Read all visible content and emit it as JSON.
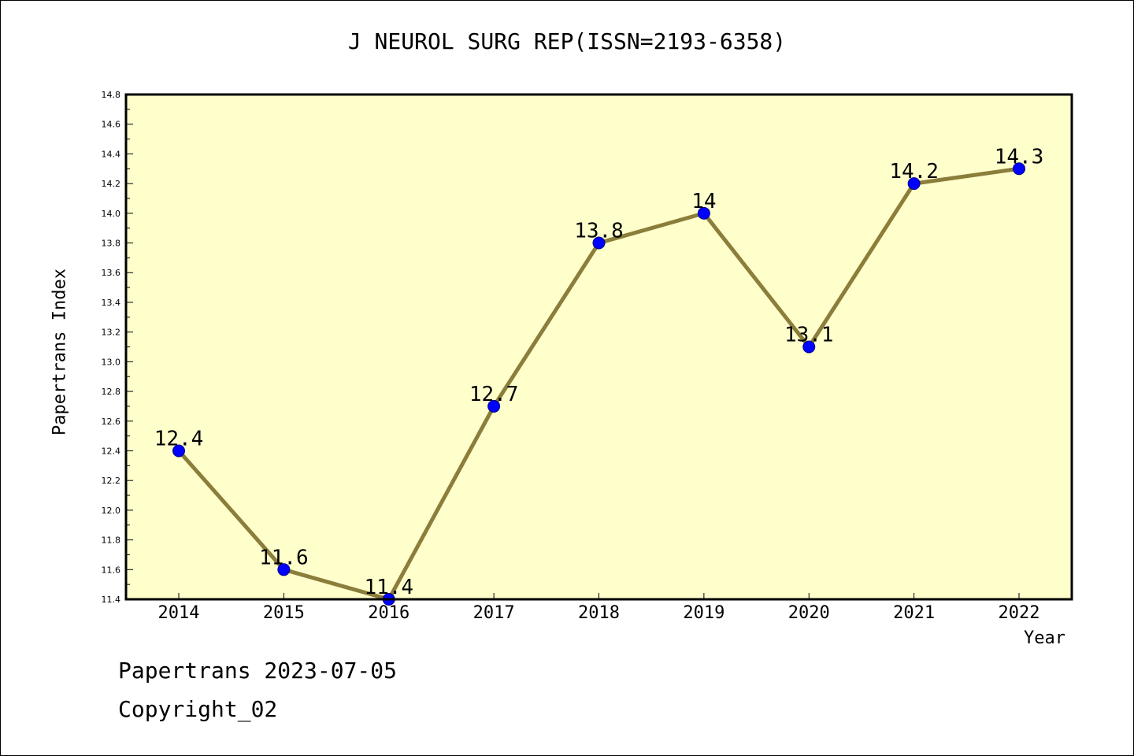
{
  "chart_data": {
    "type": "line",
    "title": "J NEUROL SURG REP(ISSN=2193-6358)",
    "xlabel": "Year",
    "ylabel": "Papertrans Index",
    "categories": [
      "2014",
      "2015",
      "2016",
      "2017",
      "2018",
      "2019",
      "2020",
      "2021",
      "2022"
    ],
    "series": [
      {
        "values": [
          12.4,
          11.6,
          11.4,
          12.7,
          13.8,
          14.0,
          13.1,
          14.2,
          14.3
        ],
        "data_labels": [
          "12.4",
          "11.6",
          "11.4",
          "12.7",
          "13.8",
          "14",
          "13.1",
          "14.2",
          "14.3"
        ]
      }
    ],
    "ylim": [
      11.4,
      14.8
    ],
    "yticks": [
      "11.4",
      "11.6",
      "11.8",
      "12.0",
      "12.2",
      "12.4",
      "12.6",
      "12.8",
      "13.0",
      "13.2",
      "13.4",
      "13.6",
      "13.8",
      "14.0",
      "14.2",
      "14.4",
      "14.6",
      "14.8"
    ],
    "grid": false,
    "legend": "none",
    "colors": {
      "plot_background": "#ffffcc",
      "line": "#8b7d3a",
      "marker": "#0000ff"
    }
  },
  "footer": {
    "line1": "Papertrans 2023-07-05",
    "line2": "Copyright_02"
  }
}
